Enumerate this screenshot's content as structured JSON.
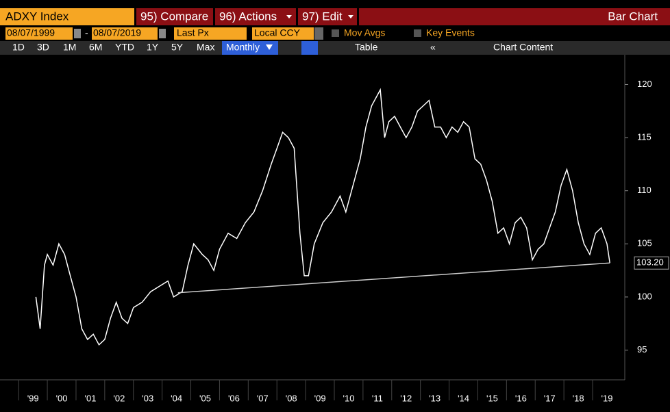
{
  "toolbar": {
    "ticker": "ADXY Index",
    "compare": "95) Compare",
    "actions": "96) Actions",
    "edit": "97) Edit",
    "view": "Bar Chart",
    "start": "08/07/1999",
    "dash": "-",
    "end": "08/07/2019",
    "field": "Last Px",
    "currency": "Local CCY",
    "mov_avgs": "Mov Avgs",
    "key_events": "Key Events",
    "ranges": [
      "1D",
      "3D",
      "1M",
      "6M",
      "YTD",
      "1Y",
      "5Y",
      "Max"
    ],
    "period": "Monthly",
    "table": "Table",
    "chart_content": "Chart Content"
  },
  "chart_data": {
    "type": "line",
    "color": "#ffffff",
    "x": [
      1999.6,
      1999.75,
      1999.9,
      2000.0,
      2000.2,
      2000.4,
      2000.6,
      2000.8,
      2001.0,
      2001.2,
      2001.4,
      2001.6,
      2001.8,
      2002.0,
      2002.2,
      2002.4,
      2002.6,
      2002.8,
      2003.0,
      2003.3,
      2003.6,
      2003.9,
      2004.2,
      2004.4,
      2004.7,
      2004.9,
      2005.1,
      2005.4,
      2005.6,
      2005.8,
      2006.0,
      2006.3,
      2006.6,
      2006.9,
      2007.2,
      2007.5,
      2007.8,
      2008.0,
      2008.2,
      2008.4,
      2008.6,
      2008.8,
      2008.95,
      2009.1,
      2009.3,
      2009.6,
      2009.9,
      2010.2,
      2010.4,
      2010.7,
      2010.9,
      2011.1,
      2011.3,
      2011.5,
      2011.6,
      2011.75,
      2011.9,
      2012.1,
      2012.3,
      2012.5,
      2012.7,
      2012.9,
      2013.1,
      2013.3,
      2013.5,
      2013.7,
      2013.9,
      2014.1,
      2014.3,
      2014.5,
      2014.7,
      2014.9,
      2015.1,
      2015.3,
      2015.5,
      2015.7,
      2015.9,
      2016.1,
      2016.3,
      2016.5,
      2016.7,
      2016.9,
      2017.1,
      2017.3,
      2017.5,
      2017.7,
      2017.9,
      2018.1,
      2018.3,
      2018.5,
      2018.7,
      2018.9,
      2019.1,
      2019.3,
      2019.5,
      2019.6
    ],
    "values": [
      100,
      97,
      103,
      104,
      103,
      105,
      104,
      102,
      100,
      97,
      96,
      96.5,
      95.5,
      96,
      98,
      99.5,
      98,
      97.5,
      99,
      99.5,
      100.5,
      101,
      101.5,
      100,
      100.5,
      103,
      105,
      104,
      103.5,
      102.5,
      104.5,
      106,
      105.5,
      107,
      108,
      110,
      112.5,
      114,
      115.5,
      115,
      114,
      106,
      102,
      102,
      105,
      107,
      108,
      109.5,
      108,
      111,
      113,
      116,
      118,
      119,
      119.5,
      115,
      116.5,
      117,
      116,
      115,
      116,
      117.5,
      118,
      118.5,
      116,
      116,
      115,
      116,
      115.5,
      116.5,
      116,
      113,
      112.5,
      111,
      109,
      106,
      106.5,
      105,
      107,
      107.5,
      106.5,
      103.5,
      104.5,
      105,
      106.5,
      108,
      110.5,
      112,
      110,
      107,
      105,
      104,
      106,
      106.5,
      105,
      103.2
    ],
    "trendline": {
      "x": [
        2004.55,
        2019.6
      ],
      "values": [
        100.4,
        103.2
      ]
    },
    "last_value": {
      "value": 103.2,
      "label": "103.20"
    },
    "xlim": [
      1998.35,
      2020.12
    ],
    "xticks": [
      {
        "value": 1999.5,
        "label": "'99"
      },
      {
        "value": 2000.5,
        "label": "'00"
      },
      {
        "value": 2001.5,
        "label": "'01"
      },
      {
        "value": 2002.5,
        "label": "'02"
      },
      {
        "value": 2003.5,
        "label": "'03"
      },
      {
        "value": 2004.5,
        "label": "'04"
      },
      {
        "value": 2005.5,
        "label": "'05"
      },
      {
        "value": 2006.5,
        "label": "'06"
      },
      {
        "value": 2007.5,
        "label": "'07"
      },
      {
        "value": 2008.5,
        "label": "'08"
      },
      {
        "value": 2009.5,
        "label": "'09"
      },
      {
        "value": 2010.5,
        "label": "'10"
      },
      {
        "value": 2011.5,
        "label": "'11"
      },
      {
        "value": 2012.5,
        "label": "'12"
      },
      {
        "value": 2013.5,
        "label": "'13"
      },
      {
        "value": 2014.5,
        "label": "'14"
      },
      {
        "value": 2015.5,
        "label": "'15"
      },
      {
        "value": 2016.5,
        "label": "'16"
      },
      {
        "value": 2017.5,
        "label": "'17"
      },
      {
        "value": 2018.5,
        "label": "'18"
      },
      {
        "value": 2019.5,
        "label": "'19"
      }
    ],
    "ylim": [
      92.2,
      122.8
    ],
    "yticks": [
      95,
      100,
      105,
      110,
      115,
      120
    ]
  }
}
